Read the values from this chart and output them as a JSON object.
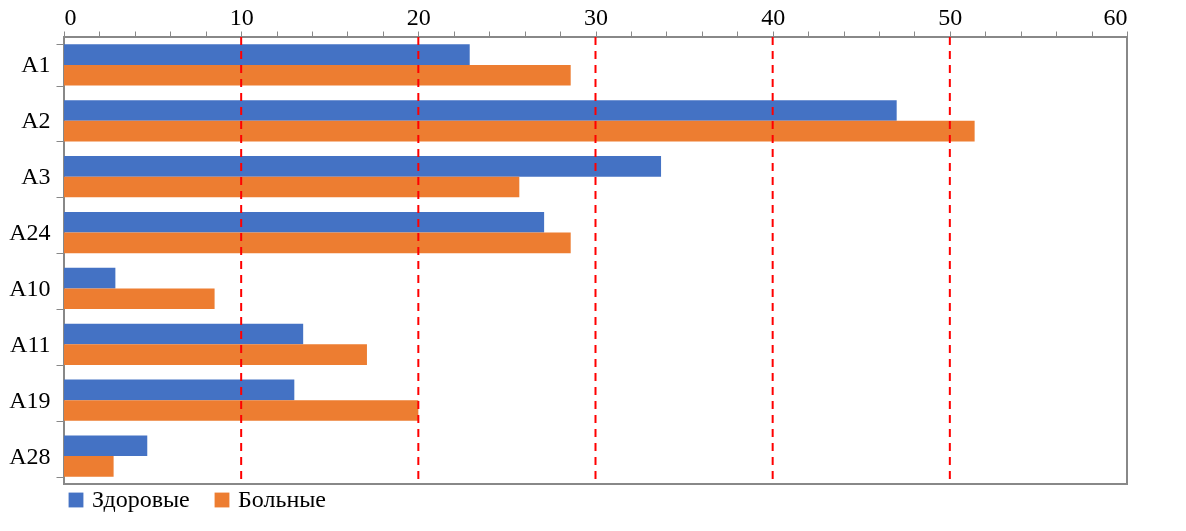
{
  "chart_data": {
    "type": "bar",
    "orientation": "horizontal",
    "categories": [
      "A1",
      "A2",
      "A3",
      "A24",
      "A10",
      "A11",
      "A19",
      "A28"
    ],
    "series": [
      {
        "name": "Здоровые",
        "color": "#4472c4",
        "values": [
          22.9,
          47.0,
          33.7,
          27.1,
          2.9,
          13.5,
          13.0,
          4.7
        ]
      },
      {
        "name": "Больные",
        "color": "#ed7d31",
        "values": [
          28.6,
          51.4,
          25.7,
          28.6,
          8.5,
          17.1,
          20.0,
          2.8
        ]
      }
    ],
    "xlim": [
      0,
      60
    ],
    "xticks": [
      0,
      {
        "value": 2,
        "label": null
      },
      {
        "value": 4,
        "label": null
      },
      {
        "value": 6,
        "label": null
      },
      {
        "value": 8,
        "label": null
      },
      10,
      {
        "value": 12,
        "label": null
      },
      {
        "value": 14,
        "label": null
      },
      {
        "value": 16,
        "label": null
      },
      {
        "value": 18,
        "label": null
      },
      20,
      {
        "value": 22,
        "label": null
      },
      {
        "value": 24,
        "label": null
      },
      {
        "value": 26,
        "label": null
      },
      {
        "value": 28,
        "label": null
      },
      30,
      {
        "value": 32,
        "label": null
      },
      {
        "value": 34,
        "label": null
      },
      {
        "value": 36,
        "label": null
      },
      {
        "value": 38,
        "label": null
      },
      40,
      {
        "value": 42,
        "label": null
      },
      {
        "value": 44,
        "label": null
      },
      {
        "value": 46,
        "label": null
      },
      {
        "value": 48,
        "label": null
      },
      50,
      {
        "value": 52,
        "label": null
      },
      {
        "value": 54,
        "label": null
      },
      {
        "value": 56,
        "label": null
      },
      {
        "value": 58,
        "label": null
      },
      60
    ],
    "ref_lines": [
      {
        "axis": "x",
        "value": 10,
        "color": "#ff0000",
        "line_style": "dashed"
      },
      {
        "axis": "x",
        "value": 20,
        "color": "#ff0000",
        "line_style": "dashed"
      },
      {
        "axis": "x",
        "value": 30,
        "color": "#ff0000",
        "line_style": "dashed"
      },
      {
        "axis": "x",
        "value": 40,
        "color": "#ff0000",
        "line_style": "dashed"
      },
      {
        "axis": "x",
        "value": 50,
        "color": "#ff0000",
        "line_style": "dashed"
      }
    ],
    "grid": false,
    "legend": "bottom"
  }
}
